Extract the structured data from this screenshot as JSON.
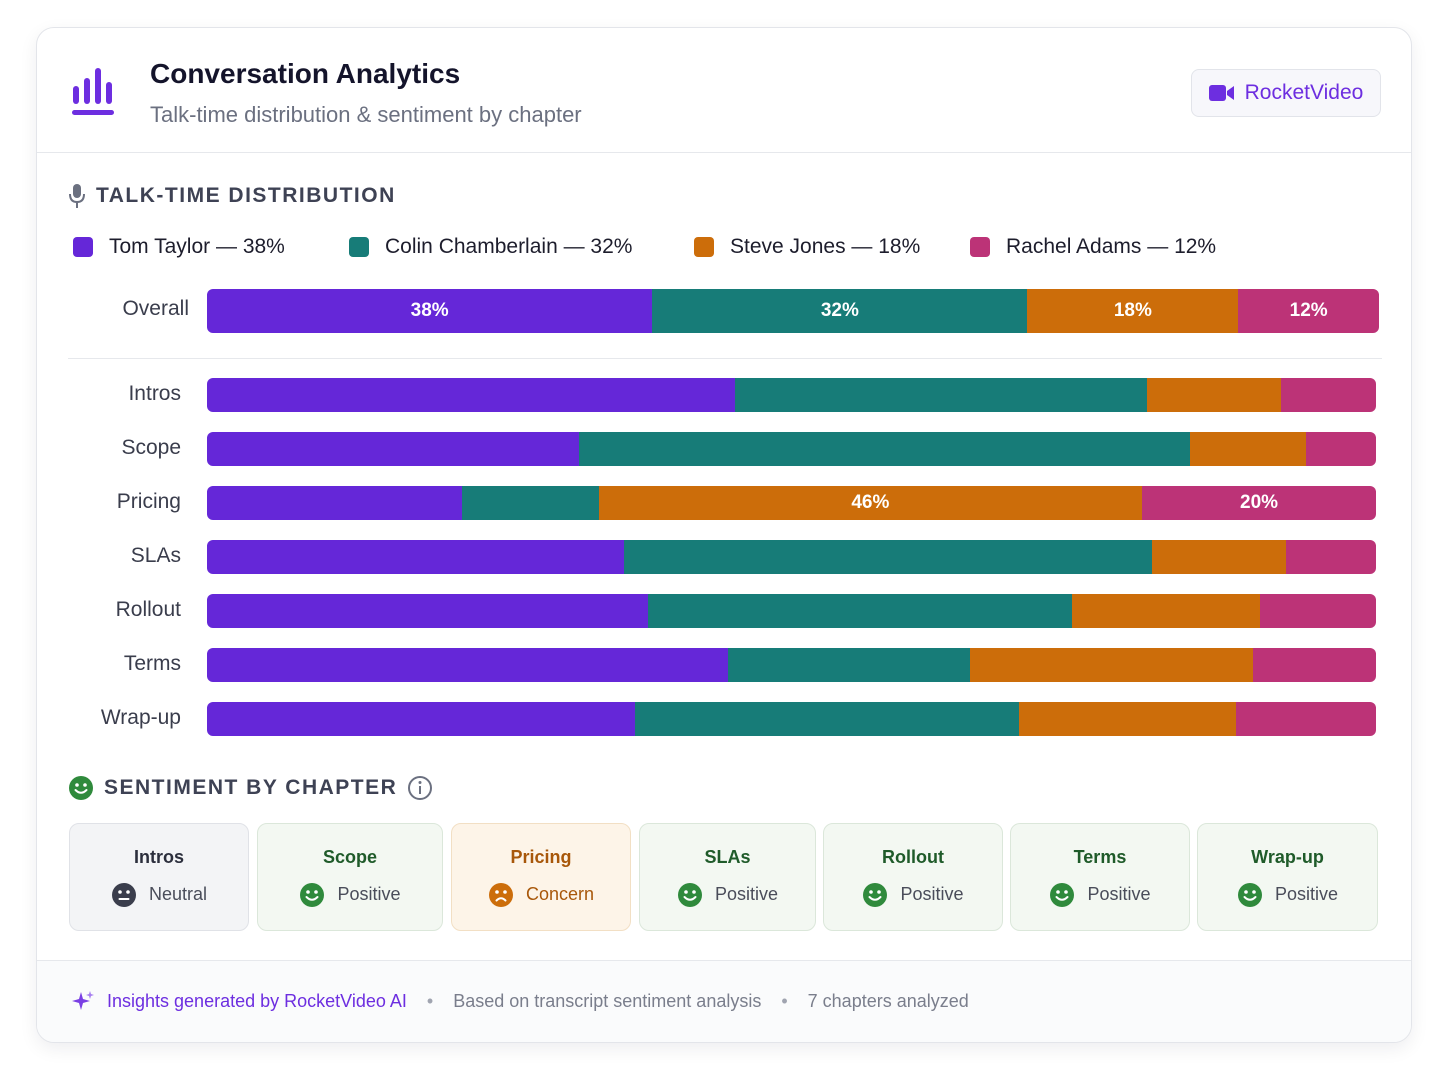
{
  "header": {
    "title": "Conversation Analytics",
    "subtitle": "Talk-time distribution & sentiment by chapter",
    "brand_label": "RocketVideo",
    "logo_icon": "bar-chart-icon",
    "brand_icon": "video-camera-icon"
  },
  "colors": {
    "accent": "#6d2ee0",
    "tom": "#6527d8",
    "colin": "#177c78",
    "steve": "#cc6d0a",
    "rachel": "#bc3377"
  },
  "talk_time": {
    "section_title": "TALK-TIME DISTRIBUTION",
    "section_icon": "microphone-icon",
    "legend": [
      {
        "label": "Tom Taylor — 38%",
        "color": "#6527d8"
      },
      {
        "label": "Colin Chamberlain — 32%",
        "color": "#177c78"
      },
      {
        "label": "Steve Jones — 18%",
        "color": "#cc6d0a"
      },
      {
        "label": "Rachel Adams — 12%",
        "color": "#bc3377"
      }
    ],
    "overall": {
      "label": "Overall",
      "values": [
        38,
        32,
        18,
        12
      ],
      "value_labels": [
        "38%",
        "32%",
        "18%",
        "12%"
      ]
    },
    "chapters": [
      {
        "label": "Intros",
        "values": [
          45.2,
          35.2,
          11.5,
          8.1
        ],
        "value_labels": [
          "",
          "",
          "",
          ""
        ]
      },
      {
        "label": "Scope",
        "values": [
          31.8,
          52.3,
          9.9,
          6.0
        ],
        "value_labels": [
          "",
          "",
          "",
          ""
        ]
      },
      {
        "label": "Pricing",
        "values": [
          21.8,
          11.7,
          46.5,
          20.0
        ],
        "value_labels": [
          "",
          "",
          "46%",
          "20%"
        ]
      },
      {
        "label": "SLAs",
        "values": [
          35.7,
          45.1,
          11.5,
          7.7
        ],
        "value_labels": [
          "",
          "",
          "",
          ""
        ]
      },
      {
        "label": "Rollout",
        "values": [
          37.7,
          36.3,
          16.1,
          9.9
        ],
        "value_labels": [
          "",
          "",
          "",
          ""
        ]
      },
      {
        "label": "Terms",
        "values": [
          44.6,
          20.7,
          24.2,
          10.5
        ],
        "value_labels": [
          "",
          "",
          "",
          ""
        ]
      },
      {
        "label": "Wrap-up",
        "values": [
          36.6,
          32.9,
          18.5,
          12.0
        ],
        "value_labels": [
          "",
          "",
          "",
          ""
        ]
      }
    ]
  },
  "sentiment": {
    "section_title": "SENTIMENT BY CHAPTER",
    "section_icon": "smiley-icon",
    "info_icon": "info-icon",
    "chapters": [
      {
        "name": "Intros",
        "state": "Neutral",
        "tone": "neutral",
        "icon": "neutral-face-icon"
      },
      {
        "name": "Scope",
        "state": "Positive",
        "tone": "positive",
        "icon": "happy-face-icon"
      },
      {
        "name": "Pricing",
        "state": "Concern",
        "tone": "concern",
        "icon": "sad-face-icon"
      },
      {
        "name": "SLAs",
        "state": "Positive",
        "tone": "positive",
        "icon": "happy-face-icon"
      },
      {
        "name": "Rollout",
        "state": "Positive",
        "tone": "positive",
        "icon": "happy-face-icon"
      },
      {
        "name": "Terms",
        "state": "Positive",
        "tone": "positive",
        "icon": "happy-face-icon"
      },
      {
        "name": "Wrap-up",
        "state": "Positive",
        "tone": "positive",
        "icon": "happy-face-icon"
      }
    ]
  },
  "footer": {
    "ai_label": "Insights generated by RocketVideo AI",
    "ai_icon": "sparkle-icon",
    "separator": "•",
    "basis": "Based on transcript sentiment analysis",
    "count": "7 chapters analyzed"
  },
  "chart_data": {
    "type": "bar",
    "stacked": true,
    "orientation": "horizontal",
    "categories": [
      "Overall",
      "Intros",
      "Scope",
      "Pricing",
      "SLAs",
      "Rollout",
      "Terms",
      "Wrap-up"
    ],
    "series": [
      {
        "name": "Tom Taylor",
        "values": [
          38,
          45.2,
          31.8,
          21.8,
          35.7,
          37.7,
          44.6,
          36.6
        ]
      },
      {
        "name": "Colin Chamberlain",
        "values": [
          32,
          35.2,
          52.3,
          11.7,
          45.1,
          36.3,
          20.7,
          32.9
        ]
      },
      {
        "name": "Steve Jones",
        "values": [
          18,
          11.5,
          9.9,
          46.5,
          11.5,
          16.1,
          24.2,
          18.5
        ]
      },
      {
        "name": "Rachel Adams",
        "values": [
          12,
          8.1,
          6.0,
          20.0,
          7.7,
          9.9,
          10.5,
          12.0
        ]
      }
    ],
    "xlim": [
      0,
      100
    ],
    "legend": "top"
  }
}
